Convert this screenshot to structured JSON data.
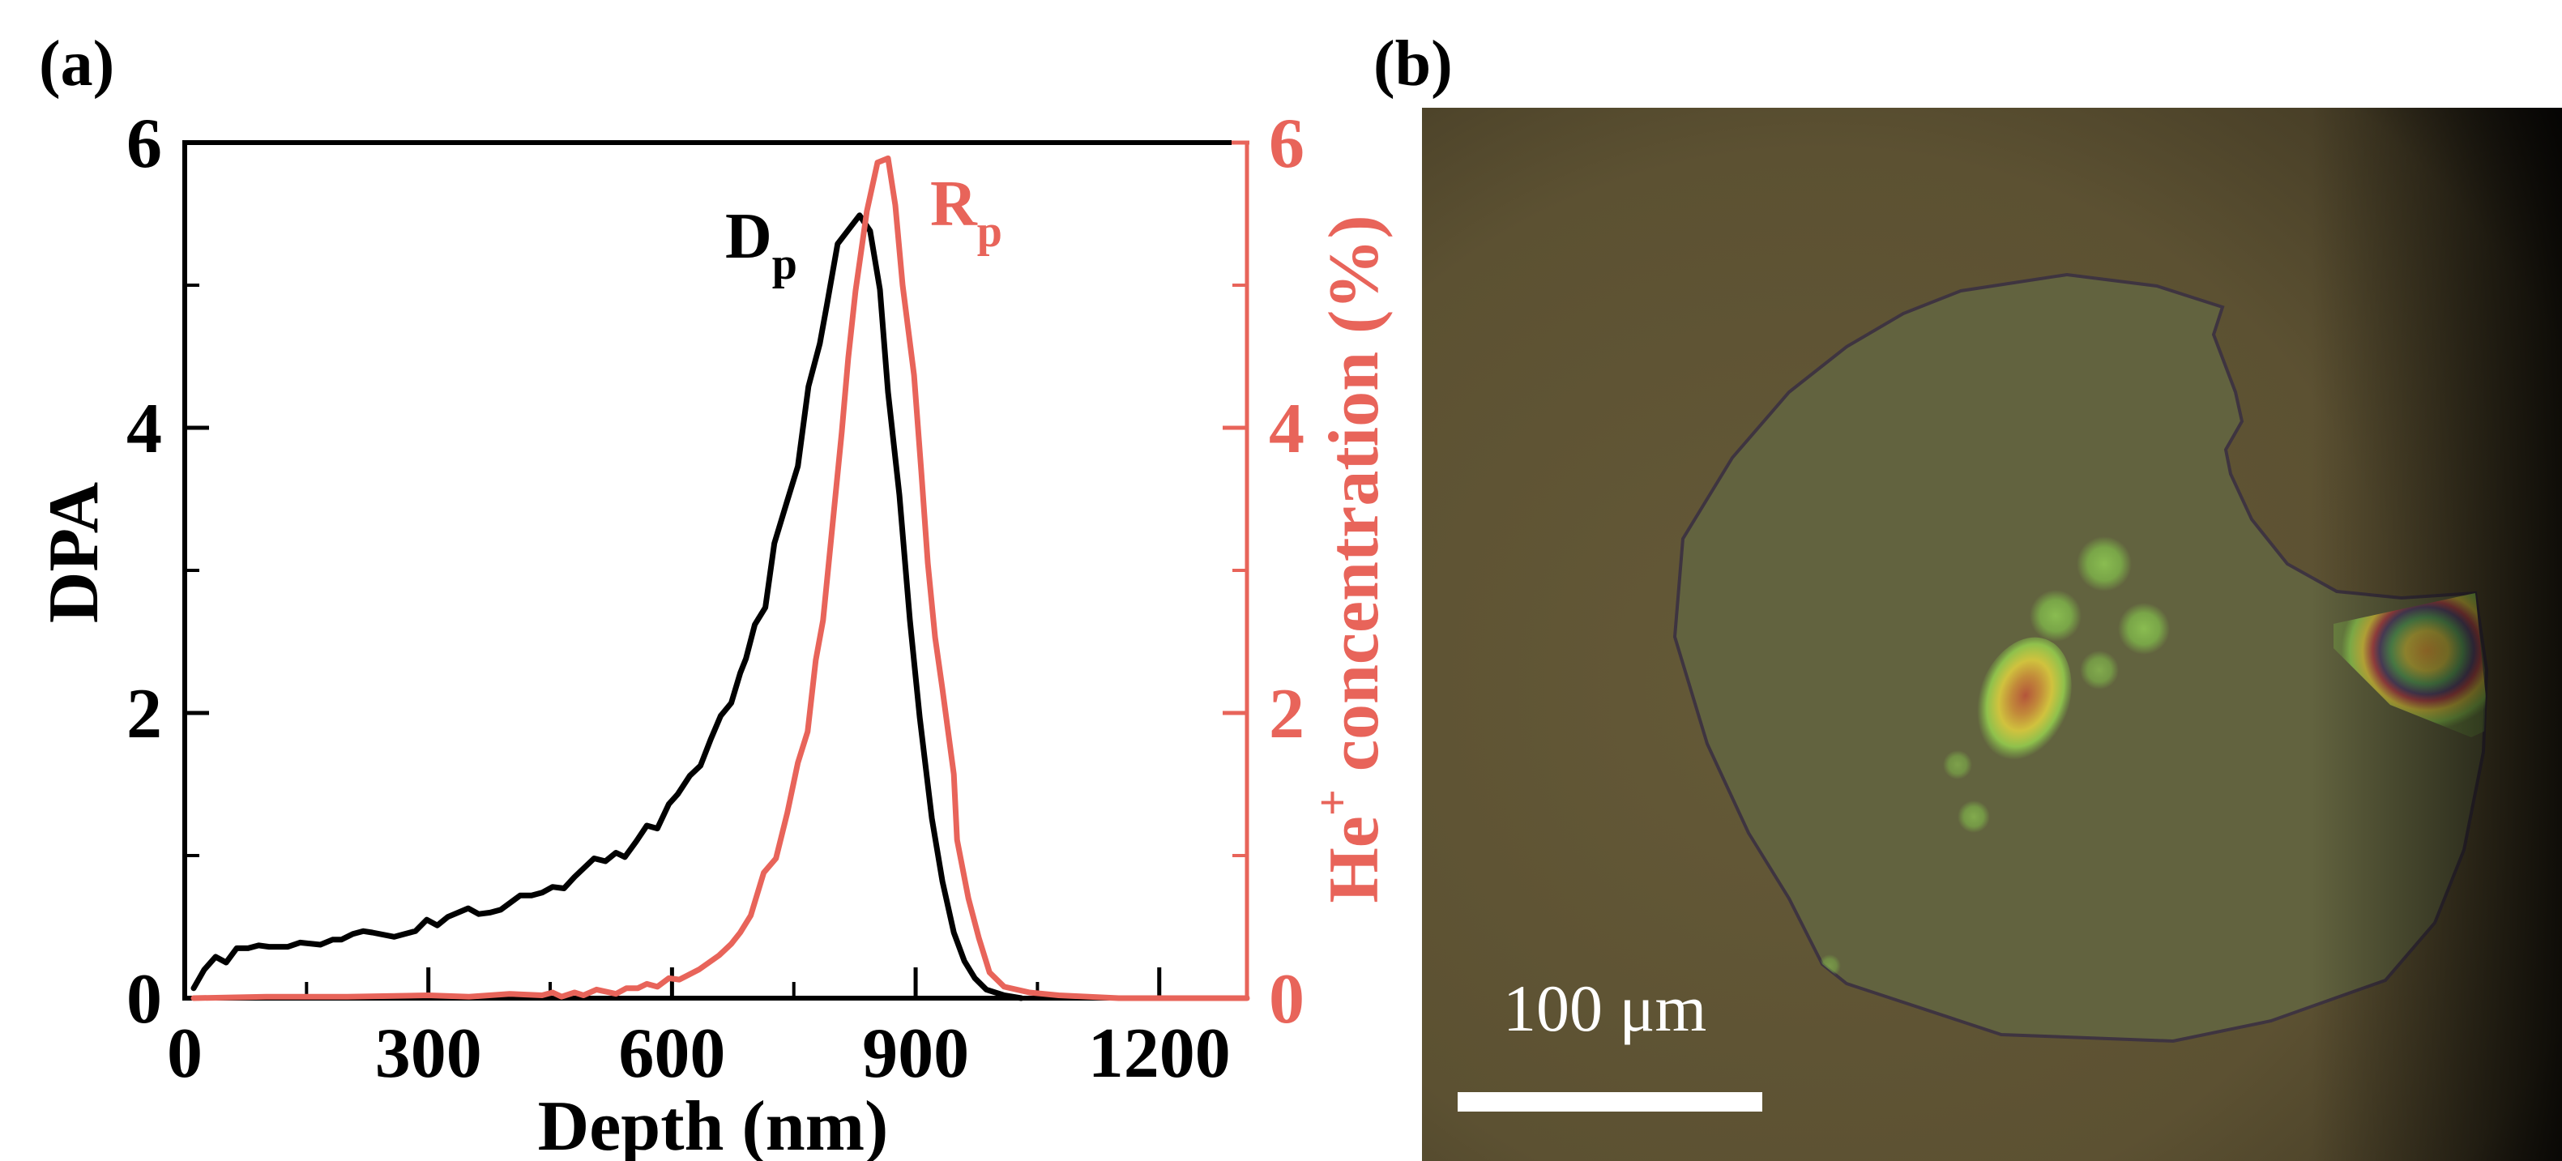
{
  "panel_a": {
    "label": "(a)",
    "curve_label_dp": {
      "main": "D",
      "sub": "p"
    },
    "curve_label_rp": {
      "main": "R",
      "sub": "p"
    }
  },
  "panel_b": {
    "label": "(b)",
    "image_description": "Optical micrograph of a flake on substrate with irradiation spots showing interference color rings",
    "scale_bar_label": "100 μm",
    "colors": {
      "background": "#5c5132",
      "flake": "#62633f",
      "spot_green": "#7fb64a",
      "spot_yellow": "#c9c23c",
      "spot_red": "#b4553a",
      "scale_bar": "#ffffff"
    }
  },
  "colors": {
    "dpa": "#000000",
    "concentration": "#e8645a"
  },
  "chart_data": {
    "type": "line",
    "title": "",
    "xlabel": "Depth (nm)",
    "ylabel": "DPA",
    "ylabel_right": {
      "prefix": "He",
      "sup": "+",
      "suffix": " concentration (%)"
    },
    "xlim": [
      0,
      1308
    ],
    "ylim": [
      0,
      6
    ],
    "ylim_right": [
      0,
      6
    ],
    "xticks": [
      0,
      300,
      600,
      900,
      1200
    ],
    "xticks_minor": [
      150,
      450,
      750,
      1050
    ],
    "yticks": [
      0,
      2,
      4,
      6
    ],
    "yticks_minor": [
      1,
      3,
      5
    ],
    "yticks_right": [
      0,
      2,
      4,
      6
    ],
    "yticks_right_minor": [
      1,
      3,
      5
    ],
    "grid": false,
    "legend": "inline-labels-near-peaks",
    "series": [
      {
        "name": "Dp",
        "axis": "left",
        "color": "#000000",
        "x": [
          11,
          24,
          38,
          51,
          64,
          78,
          91,
          104,
          127,
          142,
          167,
          182,
          193,
          207,
          220,
          231,
          258,
          271,
          284,
          298,
          311,
          324,
          349,
          362,
          376,
          389,
          413,
          427,
          440,
          453,
          467,
          480,
          504,
          518,
          531,
          542,
          556,
          569,
          582,
          596,
          607,
          622,
          635,
          648,
          660,
          673,
          684,
          691,
          702,
          715,
          726,
          742,
          755,
          768,
          782,
          791,
          804,
          831,
          844,
          856,
          866,
          880,
          893,
          905,
          920,
          933,
          947,
          960,
          973,
          987,
          1009,
          1030
        ],
        "y": [
          0.07,
          0.2,
          0.29,
          0.25,
          0.35,
          0.35,
          0.37,
          0.36,
          0.36,
          0.39,
          0.375,
          0.41,
          0.41,
          0.45,
          0.47,
          0.46,
          0.43,
          0.45,
          0.47,
          0.55,
          0.51,
          0.57,
          0.63,
          0.59,
          0.6,
          0.62,
          0.72,
          0.72,
          0.74,
          0.78,
          0.77,
          0.85,
          0.98,
          0.96,
          1.02,
          0.99,
          1.1,
          1.21,
          1.19,
          1.36,
          1.43,
          1.56,
          1.63,
          1.82,
          1.98,
          2.07,
          2.28,
          2.38,
          2.62,
          2.74,
          3.19,
          3.49,
          3.73,
          4.29,
          4.59,
          4.87,
          5.29,
          5.49,
          5.38,
          4.97,
          4.25,
          3.53,
          2.65,
          1.97,
          1.26,
          0.82,
          0.46,
          0.26,
          0.14,
          0.06,
          0.02,
          0.0
        ]
      },
      {
        "name": "Rp",
        "axis": "right",
        "color": "#e8645a",
        "x": [
          11,
          100,
          200,
          300,
          350,
          400,
          440,
          453,
          464,
          480,
          491,
          507,
          531,
          544,
          558,
          569,
          582,
          596,
          609,
          633,
          658,
          673,
          684,
          697,
          713,
          728,
          742,
          755,
          767,
          777,
          786,
          800,
          809,
          817,
          826,
          840,
          853,
          866,
          875,
          884,
          898,
          907,
          915,
          924,
          933,
          947,
          951,
          965,
          978,
          991,
          1009,
          1040,
          1076,
          1150,
          1308
        ],
        "y": [
          0.0,
          0.01,
          0.01,
          0.02,
          0.01,
          0.03,
          0.02,
          0.04,
          0.01,
          0.04,
          0.02,
          0.06,
          0.03,
          0.07,
          0.07,
          0.1,
          0.08,
          0.14,
          0.13,
          0.2,
          0.3,
          0.38,
          0.46,
          0.58,
          0.88,
          0.98,
          1.3,
          1.65,
          1.87,
          2.37,
          2.65,
          3.45,
          3.97,
          4.49,
          4.96,
          5.52,
          5.86,
          5.89,
          5.56,
          5.0,
          4.37,
          3.69,
          3.05,
          2.53,
          2.17,
          1.57,
          1.11,
          0.7,
          0.42,
          0.18,
          0.08,
          0.04,
          0.02,
          0.0,
          0.0
        ]
      }
    ]
  }
}
